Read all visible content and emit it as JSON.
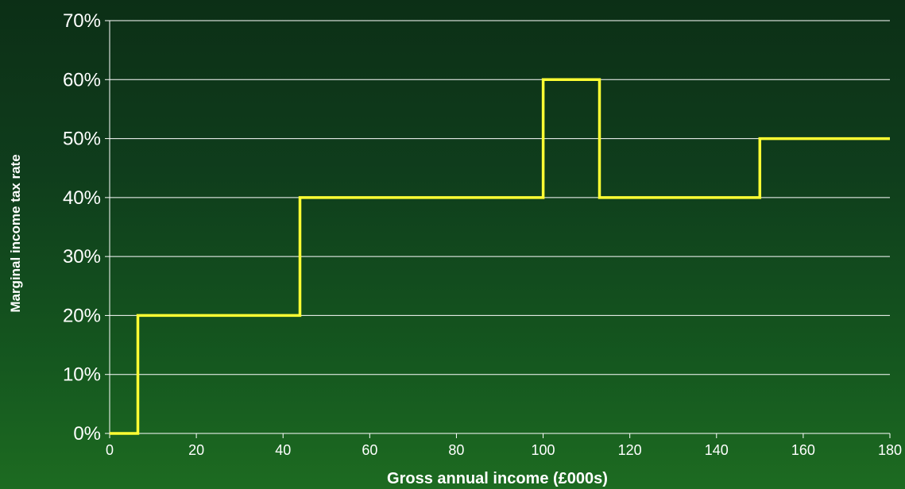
{
  "chart_data": {
    "type": "line",
    "step": true,
    "title": "",
    "xlabel": "Gross annual income (£000s)",
    "ylabel": "Marginal income tax rate",
    "xlim": [
      0,
      180
    ],
    "ylim": [
      0,
      70
    ],
    "x_ticks": [
      0,
      20,
      40,
      60,
      80,
      100,
      120,
      140,
      160,
      180
    ],
    "y_ticks": [
      {
        "value": 0,
        "label": "0%"
      },
      {
        "value": 10,
        "label": "10%"
      },
      {
        "value": 20,
        "label": "20%"
      },
      {
        "value": 30,
        "label": "30%"
      },
      {
        "value": 40,
        "label": "40%"
      },
      {
        "value": 50,
        "label": "50%"
      },
      {
        "value": 60,
        "label": "60%"
      },
      {
        "value": 70,
        "label": "70%"
      }
    ],
    "grid": "horizontal",
    "legend": "none",
    "series": [
      {
        "color": "#ffff33",
        "points": [
          {
            "x": 0,
            "y": 0
          },
          {
            "x": 6.5,
            "y": 0
          },
          {
            "x": 6.5,
            "y": 20
          },
          {
            "x": 43.9,
            "y": 20
          },
          {
            "x": 43.9,
            "y": 40
          },
          {
            "x": 100,
            "y": 40
          },
          {
            "x": 100,
            "y": 60
          },
          {
            "x": 113,
            "y": 60
          },
          {
            "x": 113,
            "y": 40
          },
          {
            "x": 150,
            "y": 40
          },
          {
            "x": 150,
            "y": 50
          },
          {
            "x": 180,
            "y": 50
          }
        ]
      }
    ],
    "colors": {
      "gridline": "#ffffff",
      "axis": "#ffffff",
      "text": "#ffffff"
    }
  }
}
